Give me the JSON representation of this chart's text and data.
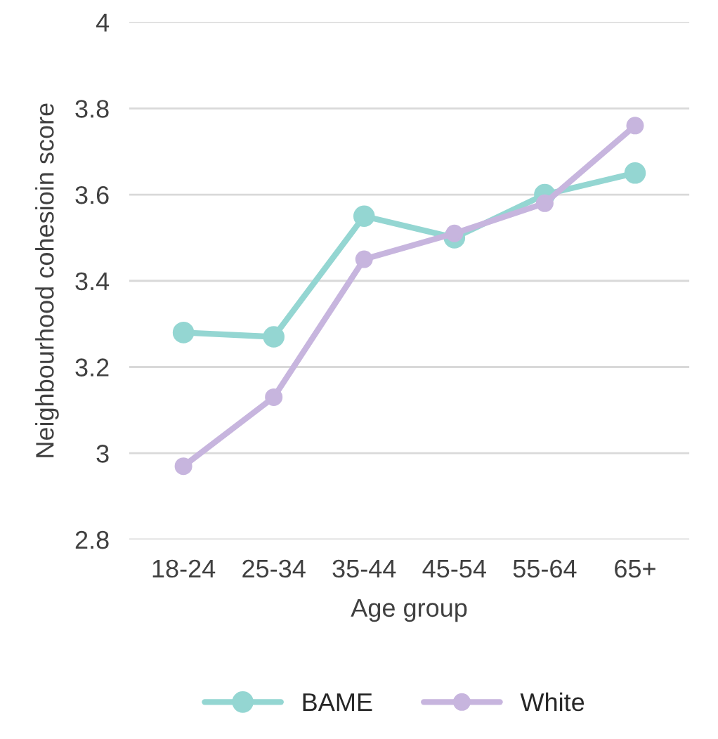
{
  "chart_data": {
    "type": "line",
    "xlabel": "Age group",
    "ylabel": "Neighbourhood cohesioin score",
    "categories": [
      "18-24",
      "25-34",
      "35-44",
      "45-54",
      "55-64",
      "65+"
    ],
    "series": [
      {
        "name": "BAME",
        "color": "#94d6d2",
        "values": [
          3.28,
          3.27,
          3.55,
          3.5,
          3.6,
          3.65
        ]
      },
      {
        "name": "White",
        "color": "#c7b5de",
        "values": [
          2.97,
          3.13,
          3.45,
          3.51,
          3.58,
          3.76
        ]
      }
    ],
    "ylim": [
      2.8,
      4
    ],
    "yticks": [
      2.8,
      3,
      3.2,
      3.4,
      3.6,
      3.8,
      4
    ],
    "grid": "y",
    "legend": "bottom",
    "marker": "circle",
    "line_style": "solid"
  }
}
